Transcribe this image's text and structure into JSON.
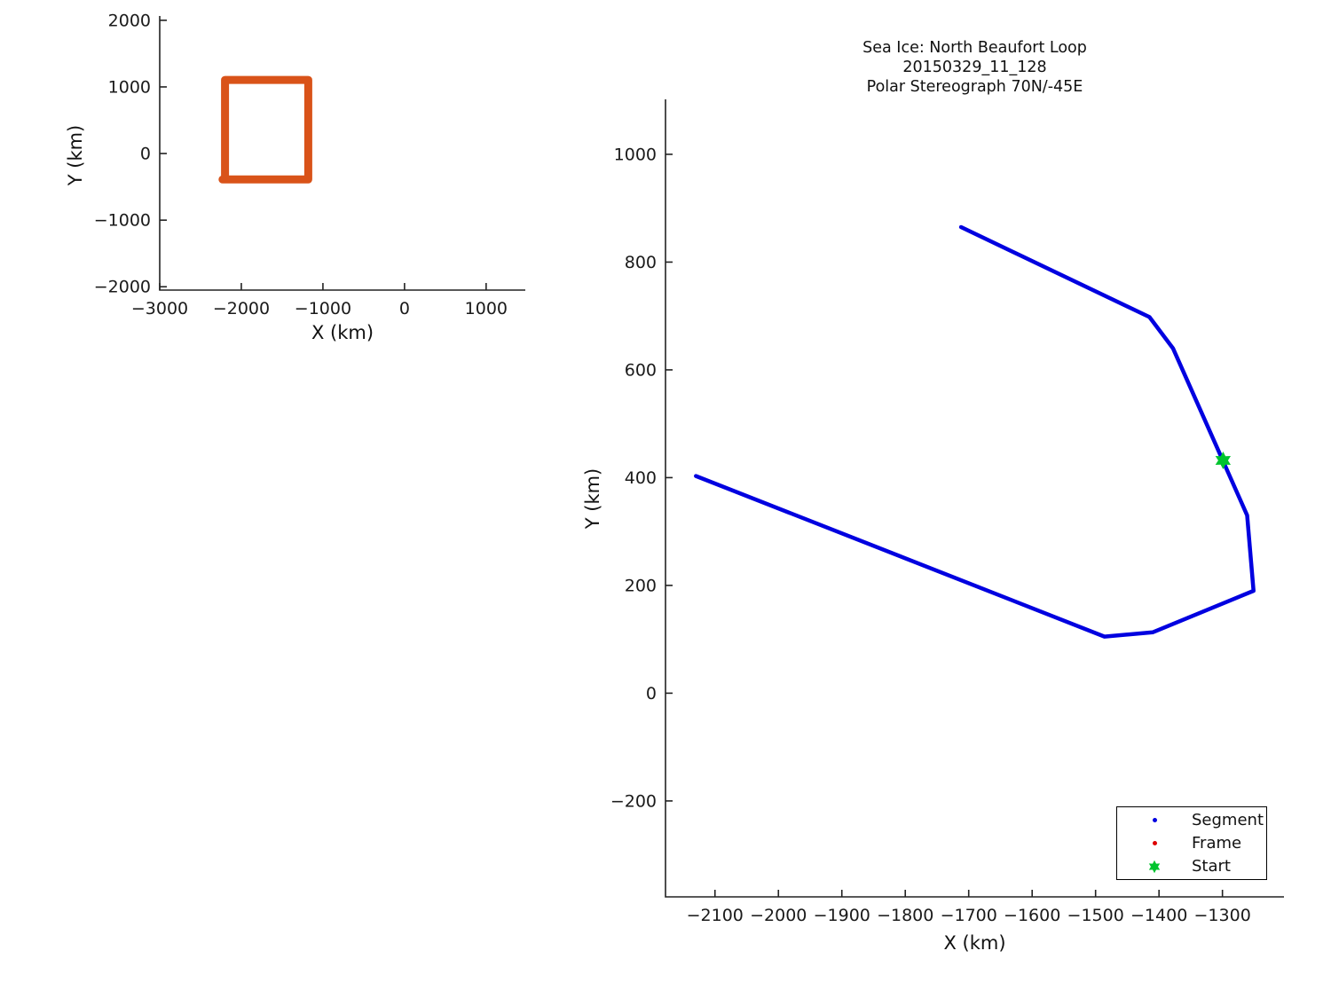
{
  "figure": {
    "background": "#FFFFFF",
    "text_color": "#1a1a1a",
    "axis_color": "#222222"
  },
  "chart_data": [
    {
      "id": "overview",
      "type": "line",
      "title": "",
      "xlabel": "X (km)",
      "ylabel": "Y (km)",
      "xlim": [
        -3000,
        1480
      ],
      "ylim": [
        -2050,
        2065
      ],
      "xticks": [
        -3000,
        -2000,
        -1000,
        0,
        1000
      ],
      "yticks": [
        -2000,
        -1000,
        0,
        1000,
        2000
      ],
      "grid": false,
      "legend": null,
      "series": [
        {
          "name": "view-extent-box",
          "type": "line",
          "color": "#D95319",
          "line_width": 9,
          "points": [
            [
              -2200,
              -390
            ],
            [
              -2200,
              1105
            ],
            [
              -1180,
              1105
            ],
            [
              -1180,
              -390
            ],
            [
              -2230,
              -390
            ]
          ]
        }
      ]
    },
    {
      "id": "trajectory",
      "type": "line",
      "title": "Sea Ice: North Beaufort Loop",
      "title_lines": [
        "Sea Ice: North Beaufort Loop",
        "20150329_11_128",
        "Polar Stereograph 70N/-45E"
      ],
      "xlabel": "X (km)",
      "ylabel": "Y (km)",
      "xlim": [
        -2178,
        -1203
      ],
      "ylim": [
        -378,
        1102
      ],
      "xticks": [
        -2100,
        -2000,
        -1900,
        -1800,
        -1700,
        -1600,
        -1500,
        -1400,
        -1300
      ],
      "yticks": [
        -200,
        0,
        200,
        400,
        600,
        800,
        1000
      ],
      "grid": false,
      "series": [
        {
          "name": "Segment",
          "type": "line",
          "color": "#0000E0",
          "line_width": 4.5,
          "points": [
            [
              -1712,
              865
            ],
            [
              -1415,
              698
            ],
            [
              -1378,
              640
            ],
            [
              -1261,
              330
            ],
            [
              -1251,
              190
            ],
            [
              -1410,
              113
            ],
            [
              -1486,
              105
            ],
            [
              -2130,
              403
            ]
          ]
        },
        {
          "name": "Start",
          "type": "scatter",
          "marker": "hexagram",
          "color": "#00C42E",
          "marker_size": 10,
          "points": [
            [
              -1299,
              432
            ]
          ]
        }
      ],
      "legend": {
        "position": "bottom-right",
        "items": [
          {
            "label": "Segment",
            "marker": "dot",
            "color": "#0000E0"
          },
          {
            "label": "Frame",
            "marker": "dot",
            "color": "#DD0000"
          },
          {
            "label": "Start",
            "marker": "hexagram",
            "color": "#00C42E"
          }
        ]
      }
    }
  ]
}
